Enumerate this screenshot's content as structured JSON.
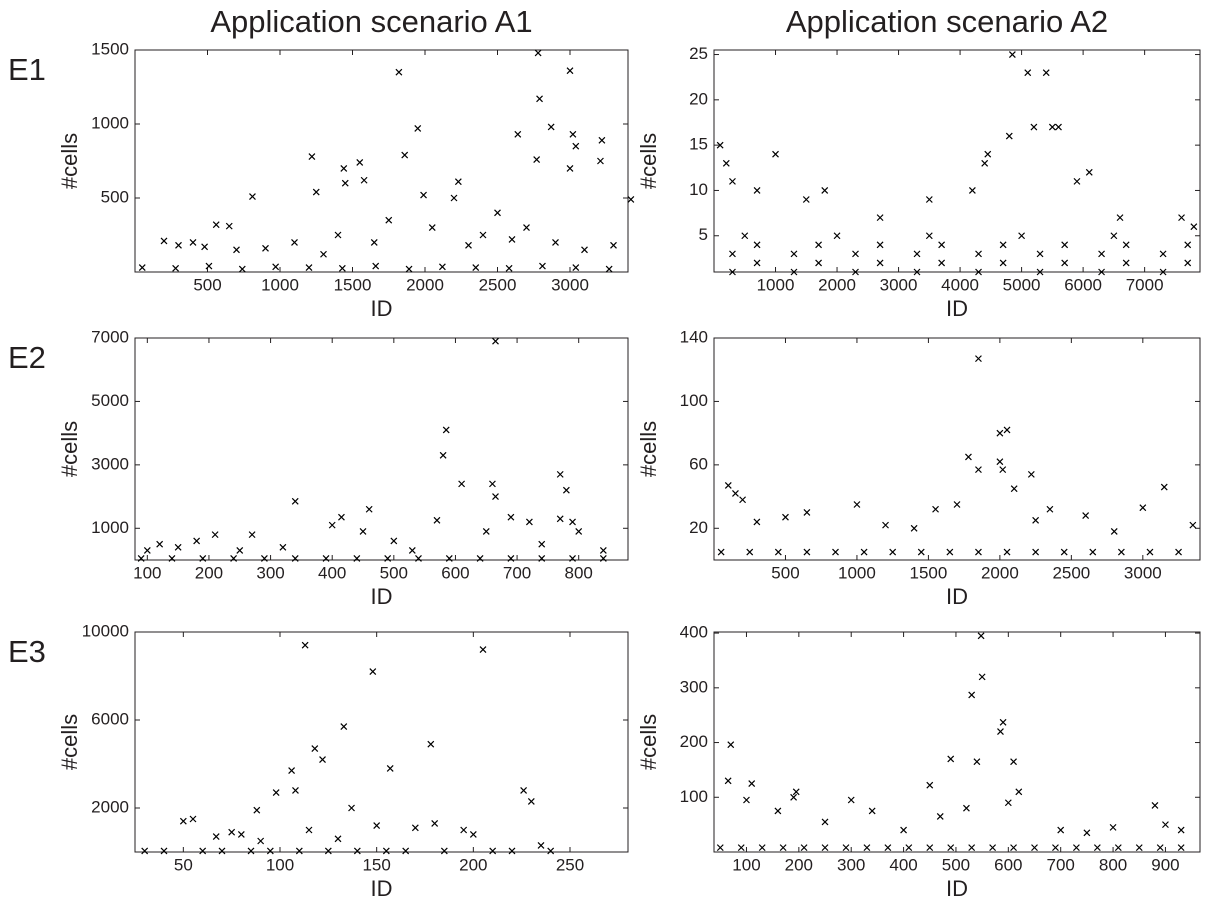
{
  "chart_data": [
    {
      "type": "scatter",
      "title": "Application scenario A1",
      "row_label": "E1",
      "x_label": "ID",
      "y_label": "#cells",
      "color": "#000000",
      "xlim": [
        0,
        3400
      ],
      "ylim": [
        0,
        1500
      ],
      "xticks": [
        500,
        1000,
        1500,
        2000,
        2500,
        3000
      ],
      "yticks": [
        500,
        1000,
        1500
      ],
      "x": [
        810,
        1220,
        1250,
        1440,
        1450,
        1550,
        1580,
        1820,
        1860,
        1950,
        1990,
        2230,
        2200,
        2640,
        2780,
        2790,
        2770,
        2870,
        3000,
        3020,
        3040,
        3220,
        3210,
        3420,
        3000,
        200,
        300,
        400,
        480,
        560,
        650,
        700,
        900,
        1100,
        1300,
        1400,
        1650,
        1750,
        2050,
        2300,
        2400,
        2500,
        2600,
        2700,
        2900,
        3100,
        3300,
        50,
        280,
        510,
        740,
        970,
        1200,
        1430,
        1660,
        1890,
        2120,
        2350,
        2580,
        2810,
        3040,
        3270
      ],
      "values": [
        510,
        780,
        540,
        700,
        600,
        740,
        620,
        1350,
        790,
        970,
        520,
        610,
        500,
        930,
        1480,
        1170,
        760,
        980,
        1360,
        930,
        850,
        890,
        750,
        490,
        700,
        210,
        180,
        200,
        170,
        320,
        310,
        150,
        160,
        200,
        120,
        250,
        200,
        350,
        300,
        180,
        250,
        400,
        220,
        300,
        200,
        150,
        180,
        30,
        25,
        40,
        20,
        35,
        30,
        25,
        40,
        20,
        35,
        30,
        25,
        40,
        30,
        20
      ]
    },
    {
      "type": "scatter",
      "title": "Application scenario A2",
      "x_label": "ID",
      "y_label": "#cells",
      "color": "#000000",
      "xlim": [
        0,
        7900
      ],
      "ylim": [
        1,
        25.5
      ],
      "xticks": [
        1000,
        2000,
        3000,
        4000,
        5000,
        6000,
        7000
      ],
      "yticks": [
        5,
        10,
        15,
        20,
        25
      ],
      "x": [
        100,
        200,
        300,
        1000,
        1800,
        4850,
        5100,
        5400,
        5500,
        5600,
        5200,
        4450,
        4800,
        6100,
        4400,
        3500,
        4200,
        5900,
        700,
        1500,
        2700,
        7600,
        7800,
        6600,
        300,
        1300,
        2300,
        3300,
        4300,
        5300,
        6300,
        7300,
        700,
        1700,
        2700,
        3700,
        4700,
        5700,
        6700,
        7700,
        300,
        1300,
        2300,
        3300,
        4300,
        5300,
        6300,
        7300,
        700,
        1700,
        2700,
        3700,
        4700,
        5700,
        6700,
        7700,
        500,
        2000,
        3500,
        5000,
        6500
      ],
      "values": [
        15,
        13,
        11,
        14,
        10,
        25,
        23,
        23,
        17,
        17,
        17,
        14,
        16,
        12,
        13,
        9,
        10,
        11,
        10,
        9,
        7,
        7,
        6,
        7,
        1,
        1,
        1,
        1,
        1,
        1,
        1,
        1,
        2,
        2,
        2,
        2,
        2,
        2,
        2,
        2,
        3,
        3,
        3,
        3,
        3,
        3,
        3,
        3,
        4,
        4,
        4,
        4,
        4,
        4,
        4,
        4,
        5,
        5,
        5,
        5,
        5
      ]
    },
    {
      "type": "scatter",
      "row_label": "E2",
      "x_label": "ID",
      "y_label": "#cells",
      "color": "#000000",
      "xlim": [
        80,
        880
      ],
      "ylim": [
        0,
        7000
      ],
      "xticks": [
        100,
        200,
        300,
        400,
        500,
        600,
        700,
        800
      ],
      "yticks": [
        1000,
        3000,
        5000,
        7000
      ],
      "x": [
        665,
        585,
        580,
        610,
        660,
        665,
        770,
        780,
        340,
        460,
        415,
        570,
        690,
        720,
        770,
        790,
        800,
        210,
        270,
        400,
        450,
        100,
        120,
        150,
        180,
        250,
        320,
        500,
        530,
        650,
        740,
        840,
        90,
        140,
        190,
        240,
        290,
        340,
        390,
        440,
        490,
        540,
        590,
        640,
        690,
        740,
        790,
        840
      ],
      "values": [
        6900,
        4100,
        3300,
        2400,
        2400,
        2000,
        2700,
        2200,
        1850,
        1600,
        1350,
        1250,
        1350,
        1200,
        1300,
        1200,
        900,
        800,
        800,
        1100,
        900,
        300,
        500,
        400,
        600,
        300,
        400,
        600,
        300,
        900,
        500,
        300,
        50,
        50,
        50,
        50,
        50,
        50,
        50,
        50,
        50,
        50,
        50,
        50,
        50,
        50,
        50,
        50
      ]
    },
    {
      "type": "scatter",
      "x_label": "ID",
      "y_label": "#cells",
      "color": "#000000",
      "xlim": [
        0,
        3400
      ],
      "ylim": [
        0,
        140
      ],
      "xticks": [
        500,
        1000,
        1500,
        2000,
        2500,
        3000
      ],
      "yticks": [
        20,
        60,
        100,
        140
      ],
      "x": [
        1850,
        2050,
        2000,
        1780,
        2000,
        2020,
        2220,
        1850,
        3150,
        100,
        150,
        200,
        1000,
        1700,
        1550,
        2350,
        2600,
        3000,
        3350,
        650,
        500,
        300,
        1200,
        1400,
        2100,
        2250,
        2800,
        50,
        250,
        450,
        650,
        850,
        1050,
        1250,
        1450,
        1650,
        1850,
        2050,
        2250,
        2450,
        2650,
        2850,
        3050,
        3250
      ],
      "values": [
        127,
        82,
        80,
        65,
        62,
        57,
        54,
        57,
        46,
        47,
        42,
        38,
        35,
        35,
        32,
        32,
        28,
        33,
        22,
        30,
        27,
        24,
        22,
        20,
        45,
        25,
        18,
        5,
        5,
        5,
        5,
        5,
        5,
        5,
        5,
        5,
        5,
        5,
        5,
        5,
        5,
        5,
        5,
        5
      ]
    },
    {
      "type": "scatter",
      "row_label": "E3",
      "x_label": "ID",
      "y_label": "#cells",
      "color": "#000000",
      "xlim": [
        25,
        280
      ],
      "ylim": [
        0,
        10000
      ],
      "xticks": [
        50,
        100,
        150,
        200,
        250
      ],
      "yticks": [
        2000,
        6000,
        10000
      ],
      "x": [
        113,
        205,
        148,
        133,
        178,
        118,
        122,
        157,
        106,
        98,
        108,
        88,
        226,
        230,
        137,
        50,
        55,
        67,
        75,
        80,
        115,
        150,
        170,
        180,
        195,
        200,
        130,
        90,
        235,
        30,
        40,
        60,
        70,
        85,
        95,
        110,
        125,
        140,
        155,
        165,
        185,
        210,
        220,
        240
      ],
      "values": [
        9400,
        9200,
        8200,
        5700,
        4900,
        4700,
        4200,
        3800,
        3700,
        2700,
        2800,
        1900,
        2800,
        2300,
        2000,
        1400,
        1500,
        700,
        900,
        800,
        1000,
        1200,
        1100,
        1300,
        1000,
        800,
        600,
        500,
        300,
        50,
        50,
        50,
        50,
        50,
        50,
        50,
        50,
        50,
        50,
        50,
        50,
        50,
        50,
        50
      ]
    },
    {
      "type": "scatter",
      "x_label": "ID",
      "y_label": "#cells",
      "color": "#000000",
      "xlim": [
        38,
        966
      ],
      "ylim": [
        0,
        402
      ],
      "xticks": [
        100,
        200,
        300,
        400,
        500,
        600,
        700,
        800,
        900
      ],
      "yticks": [
        100,
        200,
        300,
        400
      ],
      "x": [
        548,
        550,
        530,
        590,
        585,
        70,
        610,
        490,
        540,
        450,
        65,
        110,
        195,
        300,
        340,
        880,
        100,
        160,
        190,
        250,
        620,
        600,
        470,
        520,
        700,
        800,
        900,
        930,
        750,
        400,
        50,
        90,
        130,
        170,
        210,
        250,
        290,
        330,
        370,
        410,
        450,
        490,
        530,
        570,
        610,
        650,
        690,
        730,
        770,
        810,
        850,
        890,
        930
      ],
      "values": [
        395,
        320,
        287,
        237,
        220,
        196,
        165,
        170,
        165,
        122,
        130,
        125,
        110,
        95,
        75,
        85,
        95,
        75,
        100,
        55,
        110,
        90,
        65,
        80,
        40,
        45,
        50,
        40,
        35,
        40,
        8,
        8,
        8,
        8,
        8,
        8,
        8,
        8,
        8,
        8,
        8,
        8,
        8,
        8,
        8,
        8,
        8,
        8,
        8,
        8,
        8,
        8,
        8
      ]
    }
  ]
}
